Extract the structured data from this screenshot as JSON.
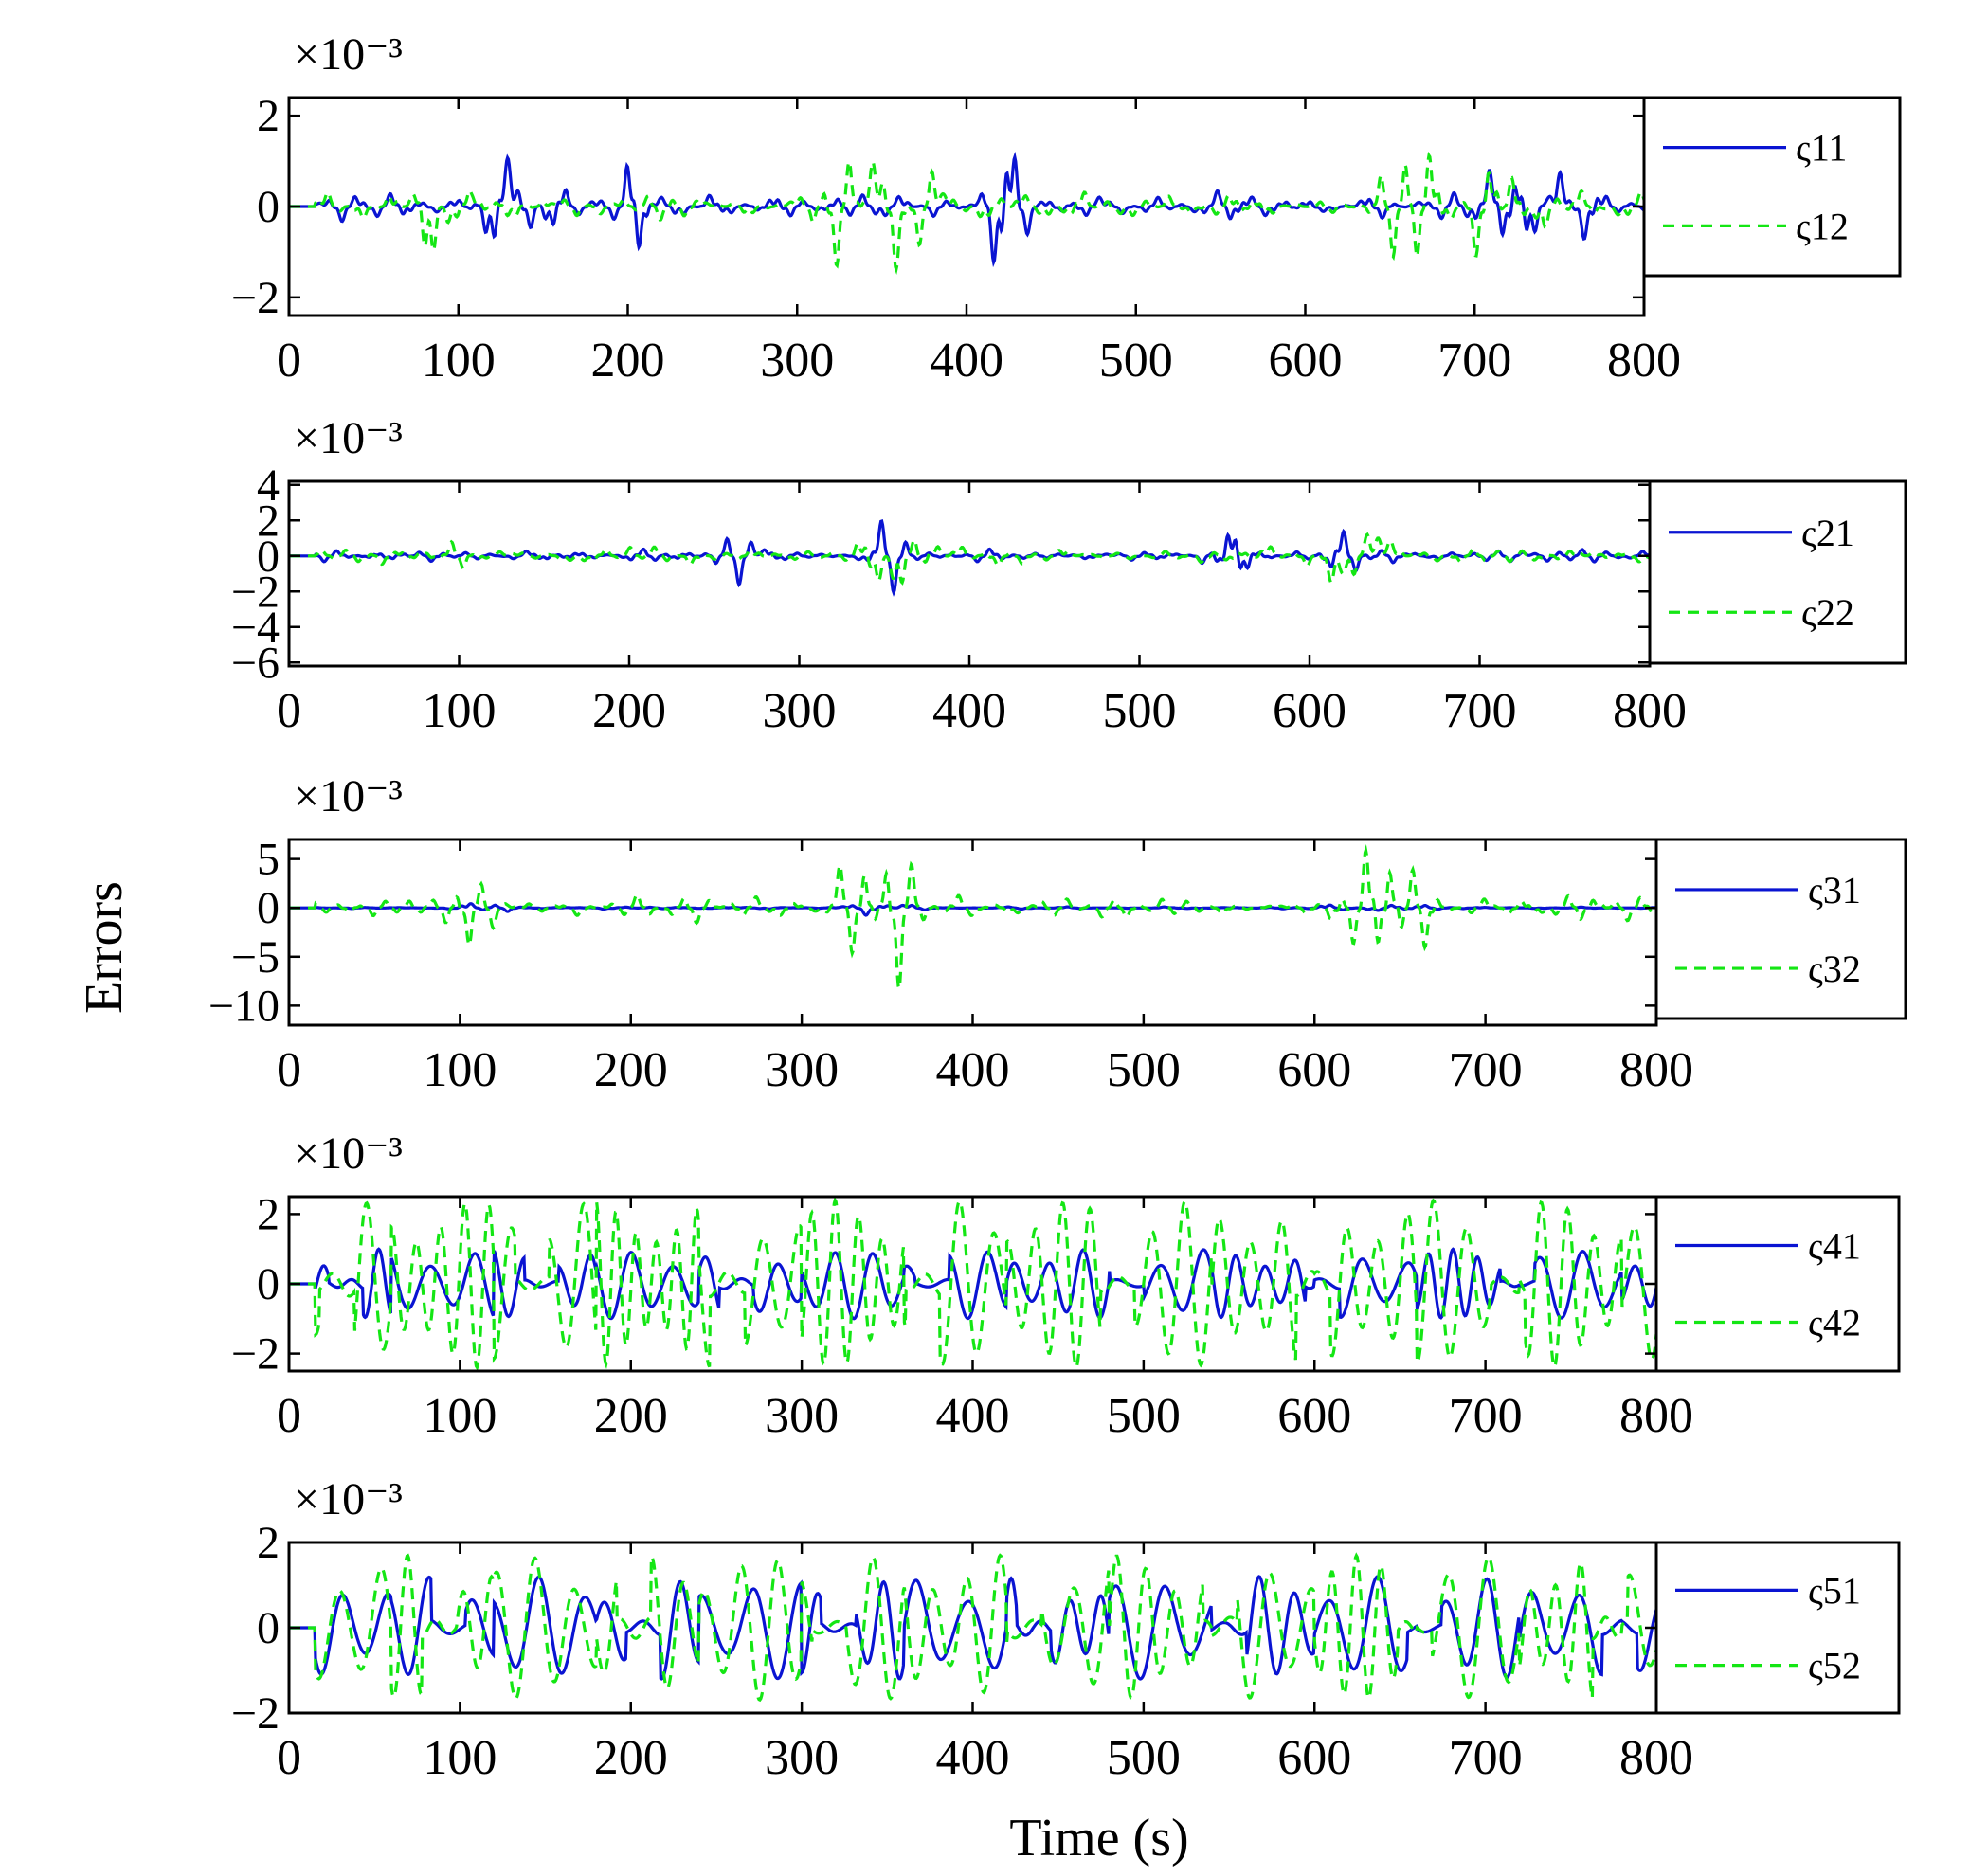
{
  "chart_data": {
    "type": "line",
    "figure_xlabel": "Time (s)",
    "figure_ylabel": "Errors",
    "colors": {
      "series1": "#0a14d2",
      "series2": "#14e614",
      "axes": "#000000"
    },
    "panels": [
      {
        "exponent_label": "×10⁻³",
        "xlim": [
          0,
          800
        ],
        "ylim": [
          -2.4,
          2.4
        ],
        "xticks": [
          0,
          100,
          200,
          300,
          400,
          500,
          600,
          700,
          800
        ],
        "xtick_labels": [
          "0",
          "100",
          "200",
          "300",
          "400",
          "500",
          "600",
          "700",
          "800"
        ],
        "yticks": [
          -2,
          0,
          2
        ],
        "ytick_labels": [
          "−2",
          "0",
          "2"
        ],
        "series": [
          {
            "name": "ς11",
            "style": "solid",
            "amp": 2.1,
            "seed": 11,
            "bursts": [
              [
                100,
                170
              ],
              [
                195,
                215
              ],
              [
                405,
                445
              ],
              [
                690,
                780
              ]
            ]
          },
          {
            "name": "ς12",
            "style": "dashed",
            "amp": 2.0,
            "seed": 12,
            "bursts": [
              [
                70,
                110
              ],
              [
                300,
                400
              ],
              [
                610,
                760
              ]
            ]
          }
        ]
      },
      {
        "exponent_label": "×10⁻³",
        "xlim": [
          0,
          800
        ],
        "ylim": [
          -6.2,
          4.2
        ],
        "xticks": [
          0,
          100,
          200,
          300,
          400,
          500,
          600,
          700,
          800
        ],
        "xtick_labels": [
          "0",
          "100",
          "200",
          "300",
          "400",
          "500",
          "600",
          "700",
          "800"
        ],
        "yticks": [
          -6,
          -4,
          -2,
          0,
          2,
          4
        ],
        "ytick_labels": [
          "−6",
          "−4",
          "−2",
          "0",
          "2",
          "4"
        ],
        "series": [
          {
            "name": "ς21",
            "style": "solid",
            "amp": 2.0,
            "seed": 21,
            "bursts": [
              [
                240,
                290
              ],
              [
                330,
                370
              ],
              [
                530,
                570
              ],
              [
                600,
                660
              ]
            ]
          },
          {
            "name": "ς22",
            "style": "dashed",
            "amp": 3.5,
            "seed": 22,
            "bursts": [
              [
                90,
                115
              ],
              [
                320,
                390
              ],
              [
                590,
                670
              ]
            ]
          }
        ]
      },
      {
        "exponent_label": "×10⁻³",
        "xlim": [
          0,
          800
        ],
        "ylim": [
          -12,
          7
        ],
        "xticks": [
          0,
          100,
          200,
          300,
          400,
          500,
          600,
          700,
          800
        ],
        "xtick_labels": [
          "0",
          "100",
          "200",
          "300",
          "400",
          "500",
          "600",
          "700",
          "800"
        ],
        "yticks": [
          -10,
          -5,
          0,
          5
        ],
        "ytick_labels": [
          "−10",
          "−5",
          "0",
          "5"
        ],
        "series": [
          {
            "name": "ς31",
            "style": "solid",
            "amp": 0.6,
            "seed": 31,
            "bursts": [
              [
                90,
                140
              ],
              [
                300,
                380
              ],
              [
                590,
                680
              ]
            ]
          },
          {
            "name": "ς32",
            "style": "dashed",
            "amp": 6.5,
            "seed": 32,
            "bursts": [
              [
                85,
                130
              ],
              [
                310,
                380
              ],
              [
                600,
                680
              ]
            ]
          }
        ]
      },
      {
        "exponent_label": "×10⁻³",
        "xlim": [
          0,
          800
        ],
        "ylim": [
          -2.5,
          2.5
        ],
        "xticks": [
          0,
          100,
          200,
          300,
          400,
          500,
          600,
          700,
          800
        ],
        "xtick_labels": [
          "0",
          "100",
          "200",
          "300",
          "400",
          "500",
          "600",
          "700",
          "800"
        ],
        "yticks": [
          -2,
          0,
          2
        ],
        "ytick_labels": [
          "−2",
          "0",
          "2"
        ],
        "series": [
          {
            "name": "ς41",
            "style": "solid",
            "amp": 1.0,
            "seed": 41,
            "wave": "chirp",
            "period": 26
          },
          {
            "name": "ς42",
            "style": "dashed",
            "amp": 2.4,
            "seed": 42,
            "wave": "chirp",
            "period": 21
          }
        ]
      },
      {
        "exponent_label": "×10⁻³",
        "xlim": [
          0,
          800
        ],
        "ylim": [
          -2,
          2
        ],
        "xticks": [
          0,
          100,
          200,
          300,
          400,
          500,
          600,
          700,
          800
        ],
        "xtick_labels": [
          "0",
          "100",
          "200",
          "300",
          "400",
          "500",
          "600",
          "700",
          "800"
        ],
        "yticks": [
          -2,
          0,
          2
        ],
        "ytick_labels": [
          "−2",
          "0",
          "2"
        ],
        "series": [
          {
            "name": "ς51",
            "style": "solid",
            "amp": 1.2,
            "seed": 51,
            "wave": "chirp",
            "period": 30
          },
          {
            "name": "ς52",
            "style": "dashed",
            "amp": 1.7,
            "seed": 52,
            "wave": "chirp",
            "period": 24
          }
        ]
      }
    ]
  }
}
